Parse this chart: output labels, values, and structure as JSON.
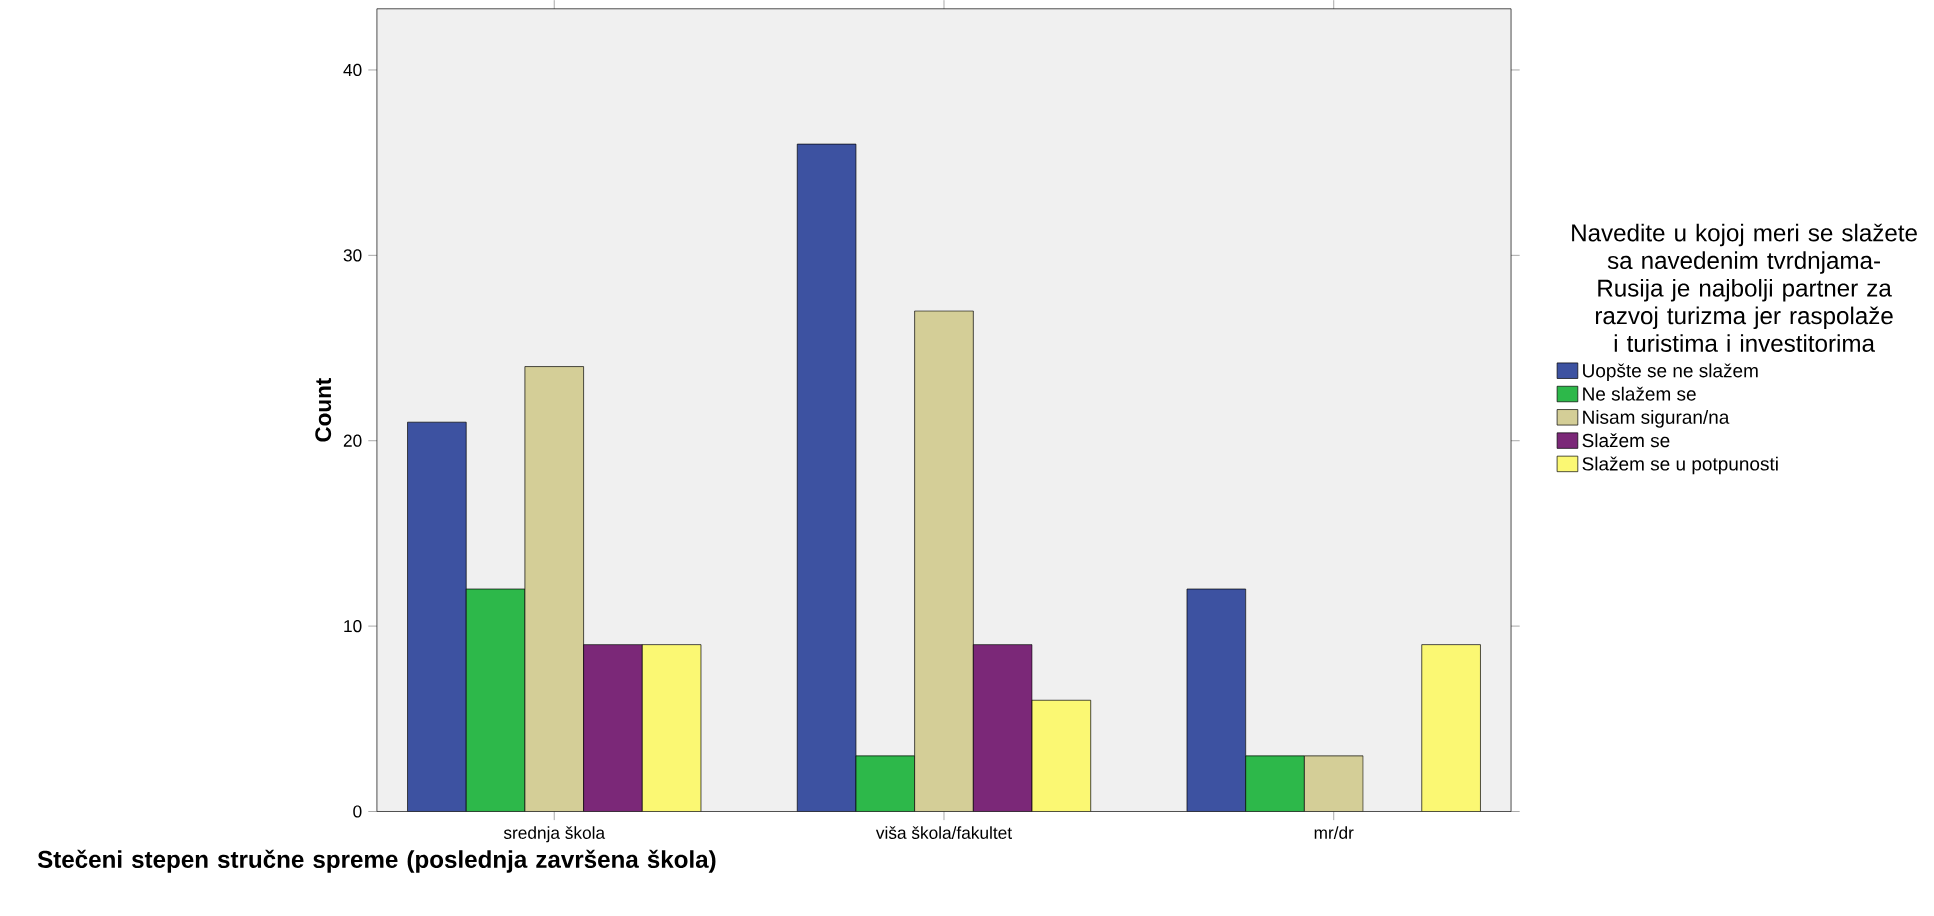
{
  "chart_data": {
    "type": "bar",
    "xlabel": "Stečeni stepen stručne spreme (poslednja završena škola)",
    "ylabel": "Count",
    "legend_title": "Navedite u kojoj meri se slažete sa navedenim tvrdnjama- Rusija je najbolji partner za razvoj turizma jer raspolaže i turistima i investitorima",
    "categories": [
      "srednja škola",
      "viša škola/fakultet",
      "mr/dr"
    ],
    "series": [
      {
        "name": "Uopšte se ne slažem",
        "color": "#3d52a1",
        "values": [
          21,
          36,
          12
        ]
      },
      {
        "name": "Ne slažem se",
        "color": "#2db84a",
        "values": [
          12,
          3,
          3
        ]
      },
      {
        "name": "Nisam siguran/na",
        "color": "#d4ce97",
        "values": [
          24,
          27,
          3
        ]
      },
      {
        "name": "Slažem se",
        "color": "#7b2878",
        "values": [
          9,
          9,
          null
        ]
      },
      {
        "name": "Slažem se u potpunosti",
        "color": "#fbf873",
        "values": [
          9,
          6,
          9
        ]
      }
    ],
    "ylim": [
      0,
      43.3
    ],
    "yticks": [
      0,
      10,
      20,
      30,
      40
    ],
    "legend": "right"
  }
}
